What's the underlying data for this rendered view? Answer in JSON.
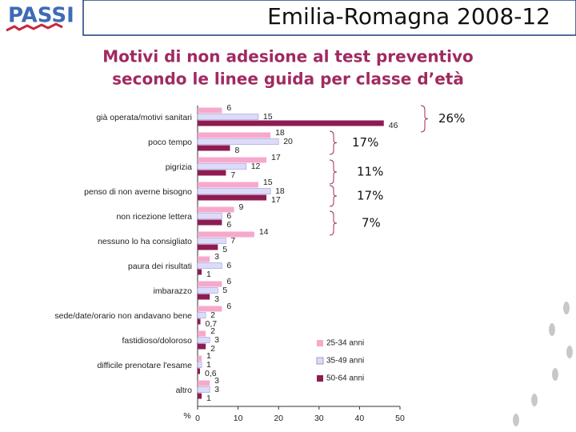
{
  "logo": "PASSI",
  "header": "Emilia-Romagna 2008-12",
  "chart_data": {
    "type": "hbar",
    "title": "Motivi di non adesione al test preventivo",
    "subtitle": "secondo le linee guida per classe d’età",
    "categories": [
      "già operata/motivi sanitari",
      "poco tempo",
      "pigrizia",
      "penso di non averne bisogno",
      "non ricezione lettera",
      "nessuno lo ha consigliato",
      "paura dei risultati",
      "imbarazzo",
      "sede/date/orario non andavano bene",
      "fastidioso/doloroso",
      "difficile prenotare l'esame",
      "altro"
    ],
    "series": [
      {
        "name": "25-34 anni",
        "color": "#f6a9cc",
        "values": [
          6,
          18,
          17,
          15,
          9,
          14,
          3,
          6,
          6,
          2,
          1,
          3
        ]
      },
      {
        "name": "35-49 anni",
        "color": "#dcdcfa",
        "values": [
          15,
          20,
          12,
          18,
          6,
          7,
          6,
          5,
          2,
          3,
          1,
          3
        ]
      },
      {
        "name": "50-64 anni",
        "color": "#8e1c52",
        "values": [
          46,
          8,
          7,
          17,
          6,
          5,
          1,
          3,
          0.7,
          2,
          0.6,
          1
        ],
        "value_labels": [
          "46",
          "8",
          "7",
          "17",
          "6",
          "5",
          "1",
          "3",
          "0,7",
          "2",
          "0,6",
          "1"
        ]
      }
    ],
    "xlabel": "%",
    "xlim": [
      0,
      50
    ],
    "xticks": [
      0,
      10,
      20,
      30,
      40,
      50
    ],
    "annotations": [
      "26%",
      "17%",
      "11%",
      "17%",
      "7%"
    ],
    "legend": "lower right"
  }
}
